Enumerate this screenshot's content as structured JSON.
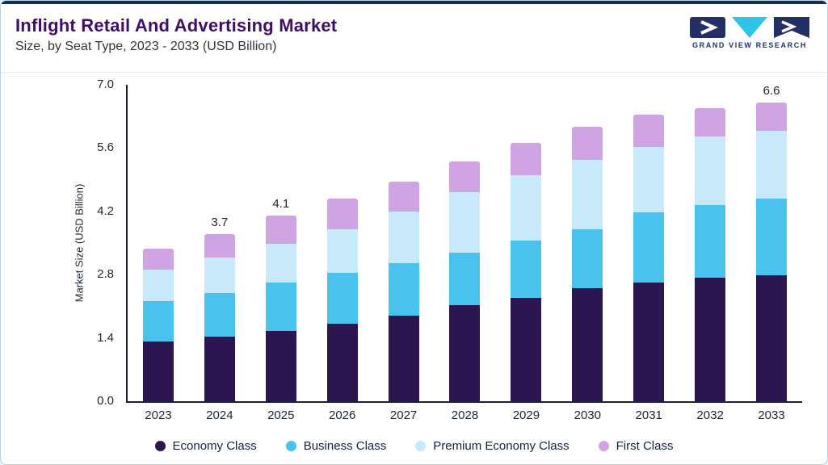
{
  "header": {
    "title": "Inflight Retail And Advertising Market",
    "subtitle": "Size, by Seat Type, 2023 - 2033 (USD Billion)",
    "logo_text": "GRAND VIEW RESEARCH"
  },
  "chart_data": {
    "type": "bar",
    "stacked": true,
    "title": "Inflight Retail And Advertising Market Size, by Seat Type, 2023 - 2033 (USD Billion)",
    "xlabel": "",
    "ylabel": "Market Size (USD Billion)",
    "ylim": [
      0,
      7.0
    ],
    "yticks": [
      0.0,
      1.4,
      2.8,
      4.2,
      5.6,
      7.0
    ],
    "grid": false,
    "legend_position": "bottom",
    "categories": [
      "2023",
      "2024",
      "2025",
      "2026",
      "2027",
      "2028",
      "2029",
      "2030",
      "2031",
      "2032",
      "2033"
    ],
    "series": [
      {
        "name": "Economy Class",
        "color": "#2c164f",
        "values": [
          1.32,
          1.42,
          1.56,
          1.72,
          1.9,
          2.12,
          2.28,
          2.5,
          2.62,
          2.74,
          2.78
        ]
      },
      {
        "name": "Business Class",
        "color": "#49c3ee",
        "values": [
          0.9,
          0.98,
          1.06,
          1.12,
          1.16,
          1.16,
          1.28,
          1.3,
          1.56,
          1.6,
          1.7
        ]
      },
      {
        "name": "Premium Economy Class",
        "color": "#c7e9fa",
        "values": [
          0.7,
          0.78,
          0.86,
          0.96,
          1.14,
          1.34,
          1.44,
          1.54,
          1.44,
          1.52,
          1.5
        ]
      },
      {
        "name": "First Class",
        "color": "#d0a3e2",
        "values": [
          0.46,
          0.52,
          0.62,
          0.68,
          0.66,
          0.68,
          0.72,
          0.74,
          0.72,
          0.62,
          0.62
        ]
      }
    ],
    "total_labels": [
      "",
      "3.7",
      "4.1",
      "",
      "",
      "",
      "",
      "",
      "",
      "",
      "6.6"
    ]
  },
  "colors": {
    "accent_bar": "#1c2b4e",
    "title": "#3e0d66",
    "axis": "#182339",
    "logo_navy": "#242f66",
    "logo_cyan": "#2fc3ea"
  }
}
